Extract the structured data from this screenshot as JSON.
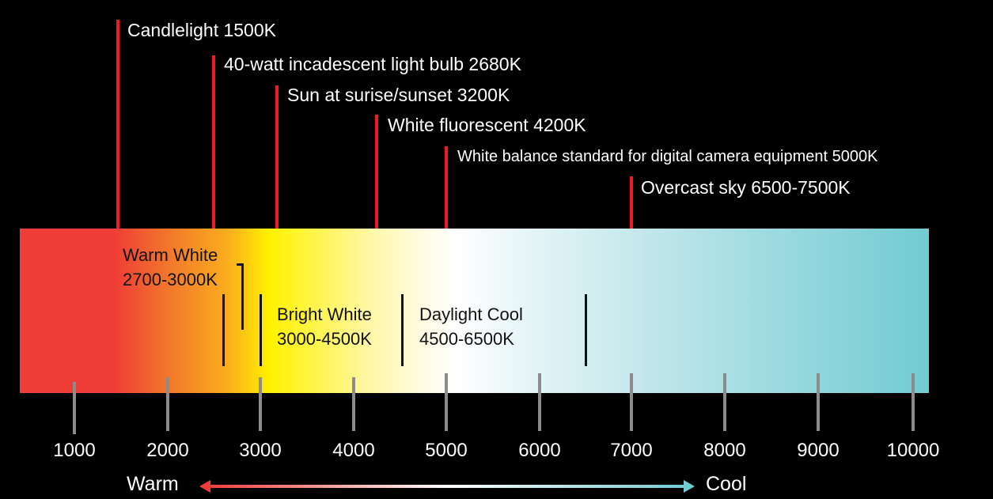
{
  "markers": [
    {
      "label": "Candlelight 1500K",
      "kelvin": 1500
    },
    {
      "label": "40-watt incadescent light bulb 2680K",
      "kelvin": 2680
    },
    {
      "label": "Sun at surise/sunset 3200K",
      "kelvin": 3200
    },
    {
      "label": "White fluorescent 4200K",
      "kelvin": 4200
    },
    {
      "label": "White balance standard for digital camera equipment 5000K",
      "kelvin": 5000
    },
    {
      "label": "Overcast sky 6500-7500K",
      "kelvin": 7000
    }
  ],
  "ranges": [
    {
      "name": "Warm White",
      "range": "2700-3000K"
    },
    {
      "name": "Bright White",
      "range": "3000-4500K"
    },
    {
      "name": "Daylight Cool",
      "range": "4500-6500K"
    }
  ],
  "axis": {
    "ticks": [
      "1000",
      "2000",
      "3000",
      "4000",
      "5000",
      "6000",
      "7000",
      "8000",
      "9000",
      "10000"
    ]
  },
  "scale": {
    "warm_label": "Warm",
    "cool_label": "Cool"
  },
  "colors": {
    "marker": "#ed1c24",
    "warm": "#ef3e36",
    "yellow": "#fff200",
    "cool": "#72cbd2"
  }
}
